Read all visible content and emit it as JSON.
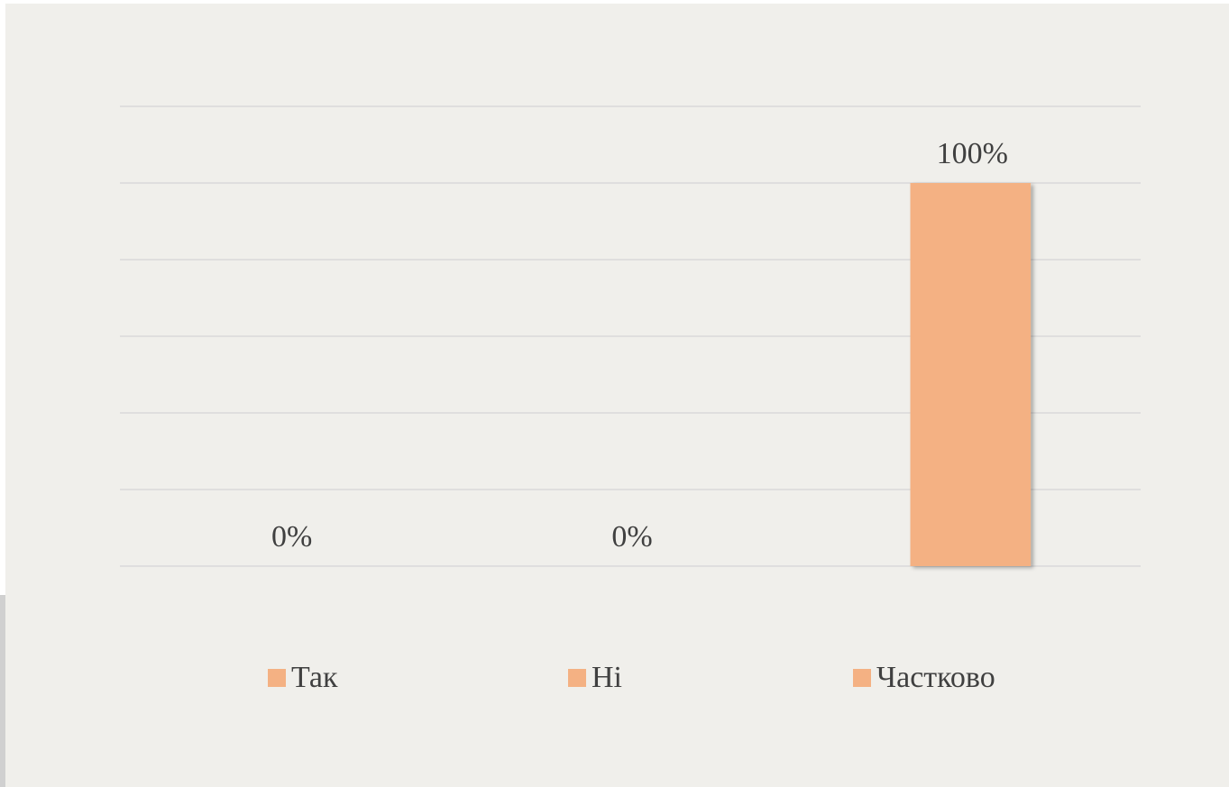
{
  "chart_data": {
    "type": "bar",
    "categories": [
      "Так",
      "Ні",
      "Частково"
    ],
    "values": [
      0,
      0,
      100
    ],
    "value_labels": [
      "0%",
      "0%",
      "100%"
    ],
    "color": "#f4b183",
    "ylim": [
      0,
      120
    ],
    "yticks": [
      0,
      20,
      40,
      60,
      80,
      100,
      120
    ],
    "grid": true,
    "legend": "bottom"
  }
}
